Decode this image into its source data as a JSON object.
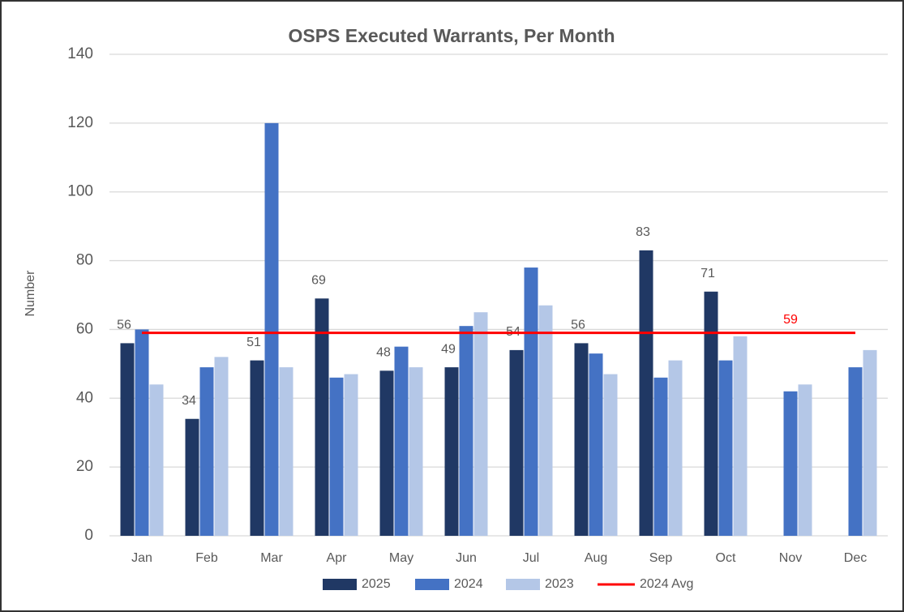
{
  "chart_data": {
    "type": "bar",
    "title": "OSPS Executed Warrants, Per Month",
    "y_label": "Number",
    "categories": [
      "Jan",
      "Feb",
      "Mar",
      "Apr",
      "May",
      "Jun",
      "Jul",
      "Aug",
      "Sep",
      "Oct",
      "Nov",
      "Dec"
    ],
    "series": [
      {
        "name": "2025",
        "color": "#203864",
        "values": [
          56,
          34,
          51,
          69,
          48,
          49,
          54,
          56,
          83,
          71,
          null,
          null
        ]
      },
      {
        "name": "2024",
        "color": "#4472c4",
        "values": [
          60,
          49,
          120,
          46,
          55,
          61,
          78,
          53,
          46,
          51,
          42,
          49
        ]
      },
      {
        "name": "2023",
        "color": "#b4c7e7",
        "values": [
          44,
          52,
          49,
          47,
          49,
          65,
          67,
          47,
          51,
          58,
          44,
          54
        ]
      }
    ],
    "avg_line": {
      "name": "2024 Avg",
      "value": 59,
      "color": "#ff0000"
    },
    "ylim": [
      0,
      140
    ],
    "yticks": [
      0,
      20,
      40,
      60,
      80,
      100,
      120,
      140
    ],
    "grid": true,
    "legend": "bottom"
  }
}
